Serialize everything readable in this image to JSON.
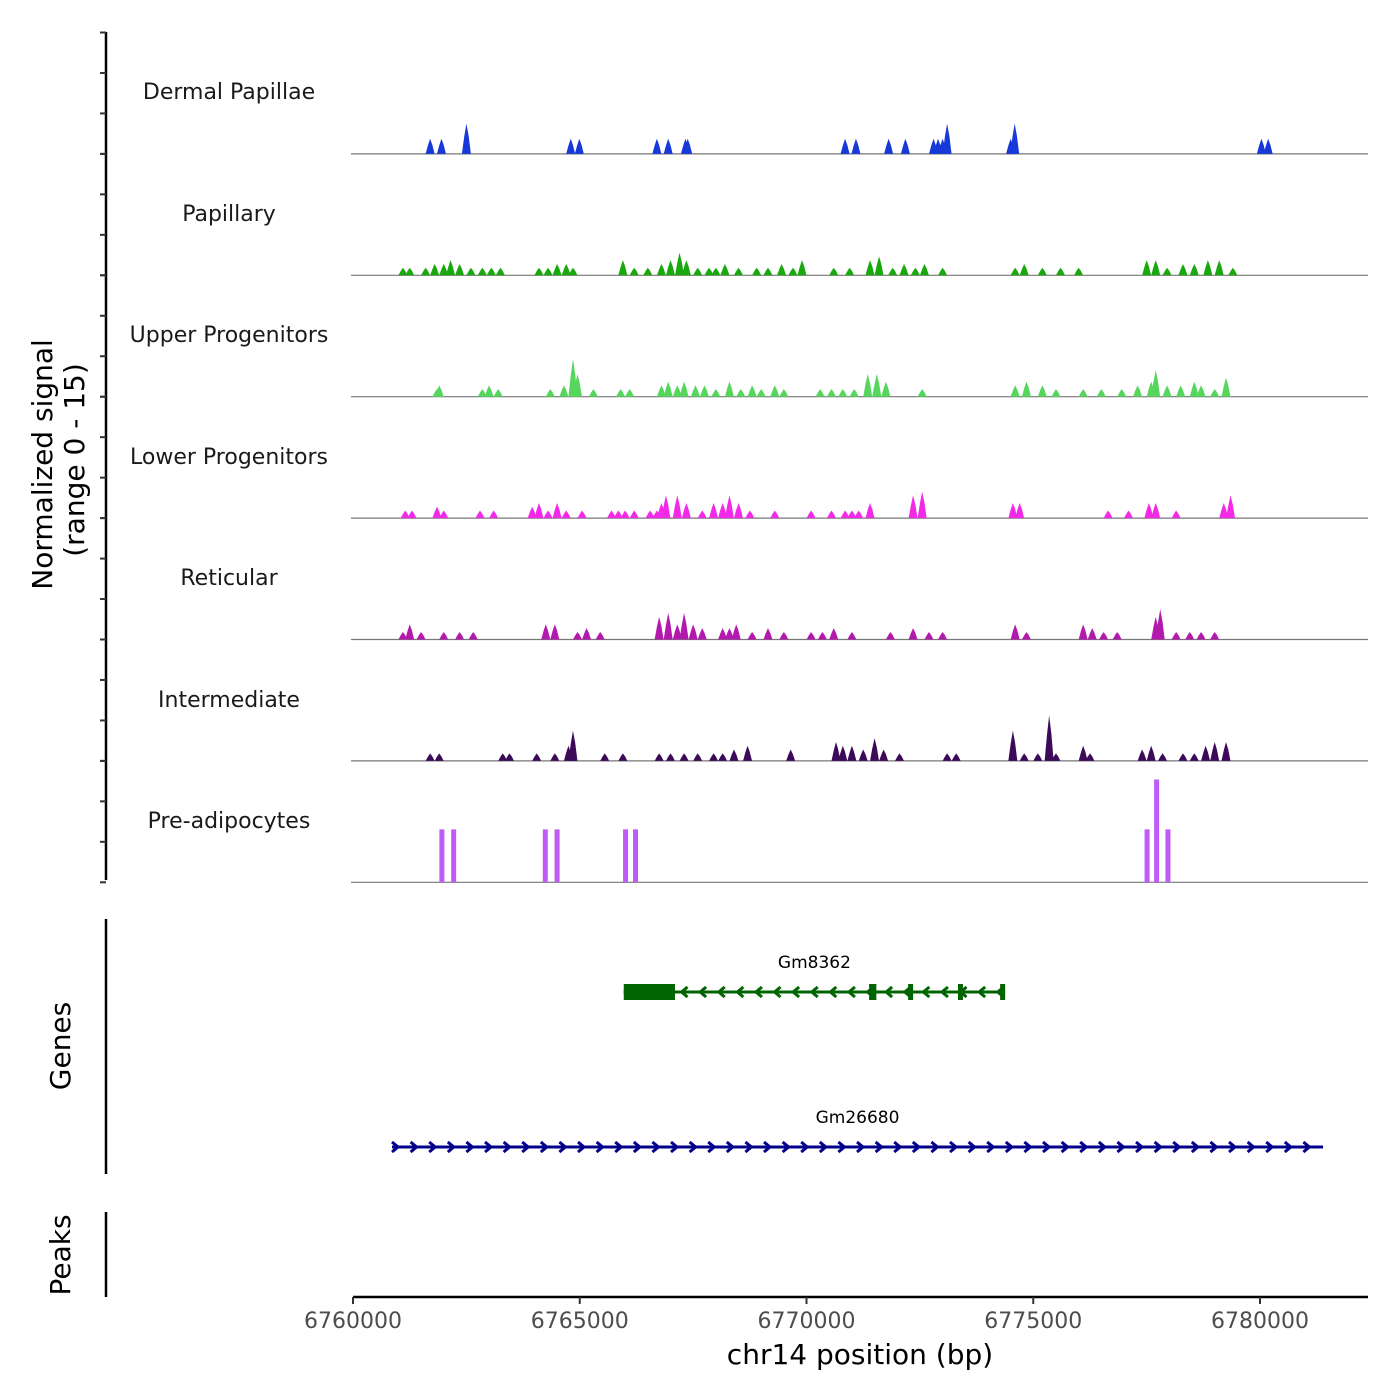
{
  "chart_data": {
    "type": "area",
    "title": "",
    "ylabel": "Normalized signal\n(range 0 - 15)",
    "ylabel_lines": [
      "Normalized signal",
      "(range 0 - 15)"
    ],
    "xlabel": "chr14 position (bp)",
    "xlim": [
      6760000,
      6782400
    ],
    "ylim": [
      0,
      15
    ],
    "x_ticks": [
      6760000,
      6765000,
      6770000,
      6775000,
      6780000
    ],
    "x_tick_labels": [
      "6760000",
      "6765000",
      "6770000",
      "6775000",
      "6780000"
    ],
    "grid": false,
    "tracks": [
      {
        "name": "Dermal Papillae",
        "color": "#1739d9",
        "peaks": [
          [
            6761700,
            2
          ],
          [
            6761950,
            2
          ],
          [
            6762500,
            4
          ],
          [
            6764800,
            2
          ],
          [
            6764990,
            2
          ],
          [
            6766700,
            2
          ],
          [
            6766950,
            2
          ],
          [
            6767330,
            2
          ],
          [
            6767380,
            2
          ],
          [
            6770850,
            2
          ],
          [
            6771090,
            2
          ],
          [
            6771810,
            2
          ],
          [
            6772180,
            2
          ],
          [
            6772800,
            2
          ],
          [
            6772900,
            2
          ],
          [
            6773000,
            2
          ],
          [
            6773100,
            4
          ],
          [
            6774500,
            2
          ],
          [
            6774590,
            4
          ],
          [
            6780030,
            2
          ],
          [
            6780180,
            2
          ]
        ]
      },
      {
        "name": "Papillary",
        "color": "#1aa80f",
        "peaks": [
          [
            6761100,
            1
          ],
          [
            6761250,
            1
          ],
          [
            6761600,
            1
          ],
          [
            6761800,
            1.5
          ],
          [
            6762000,
            1.5
          ],
          [
            6762150,
            2
          ],
          [
            6762350,
            1.5
          ],
          [
            6762600,
            1
          ],
          [
            6762850,
            1
          ],
          [
            6763050,
            1
          ],
          [
            6763250,
            1
          ],
          [
            6764100,
            1
          ],
          [
            6764300,
            1
          ],
          [
            6764500,
            1.5
          ],
          [
            6764700,
            1.5
          ],
          [
            6764850,
            1
          ],
          [
            6765950,
            2
          ],
          [
            6766200,
            1
          ],
          [
            6766500,
            1
          ],
          [
            6766800,
            1.5
          ],
          [
            6767000,
            2
          ],
          [
            6767200,
            3
          ],
          [
            6767350,
            2
          ],
          [
            6767600,
            1
          ],
          [
            6767850,
            1
          ],
          [
            6768000,
            1
          ],
          [
            6768200,
            1.5
          ],
          [
            6768500,
            1
          ],
          [
            6768900,
            1
          ],
          [
            6769150,
            1
          ],
          [
            6769450,
            1.5
          ],
          [
            6769700,
            1
          ],
          [
            6769900,
            2
          ],
          [
            6770600,
            1
          ],
          [
            6770950,
            1
          ],
          [
            6771400,
            2
          ],
          [
            6771600,
            2.5
          ],
          [
            6771900,
            1
          ],
          [
            6772150,
            1.5
          ],
          [
            6772400,
            1
          ],
          [
            6772600,
            1.5
          ],
          [
            6773000,
            1
          ],
          [
            6774600,
            1
          ],
          [
            6774800,
            1.5
          ],
          [
            6775200,
            1
          ],
          [
            6775600,
            1
          ],
          [
            6776000,
            1
          ],
          [
            6777500,
            2
          ],
          [
            6777700,
            2
          ],
          [
            6777950,
            1
          ],
          [
            6778300,
            1.5
          ],
          [
            6778550,
            1.5
          ],
          [
            6778850,
            2
          ],
          [
            6779100,
            2
          ],
          [
            6779400,
            1
          ]
        ]
      },
      {
        "name": "Upper Progenitors",
        "color": "#57d65e",
        "peaks": [
          [
            6761850,
            1
          ],
          [
            6761900,
            1.5
          ],
          [
            6762850,
            1
          ],
          [
            6763000,
            1.5
          ],
          [
            6763200,
            1
          ],
          [
            6764350,
            1
          ],
          [
            6764650,
            1.5
          ],
          [
            6764850,
            5
          ],
          [
            6764950,
            3
          ],
          [
            6765300,
            1
          ],
          [
            6765900,
            1
          ],
          [
            6766100,
            1
          ],
          [
            6766800,
            1.5
          ],
          [
            6766950,
            2
          ],
          [
            6767150,
            1.5
          ],
          [
            6767300,
            2
          ],
          [
            6767550,
            1.5
          ],
          [
            6767750,
            1.5
          ],
          [
            6768000,
            1
          ],
          [
            6768300,
            2
          ],
          [
            6768550,
            1
          ],
          [
            6768800,
            1.5
          ],
          [
            6769000,
            1
          ],
          [
            6769300,
            1.5
          ],
          [
            6769500,
            1
          ],
          [
            6770300,
            1
          ],
          [
            6770550,
            1
          ],
          [
            6770800,
            1
          ],
          [
            6771050,
            1
          ],
          [
            6771350,
            3
          ],
          [
            6771550,
            3
          ],
          [
            6771750,
            2
          ],
          [
            6772550,
            1
          ],
          [
            6774600,
            1.5
          ],
          [
            6774850,
            2
          ],
          [
            6775200,
            1.5
          ],
          [
            6775500,
            1
          ],
          [
            6776100,
            1
          ],
          [
            6776500,
            1
          ],
          [
            6776950,
            1
          ],
          [
            6777300,
            1.5
          ],
          [
            6777600,
            2
          ],
          [
            6777700,
            3.5
          ],
          [
            6777950,
            1.5
          ],
          [
            6778250,
            1.5
          ],
          [
            6778550,
            2
          ],
          [
            6778700,
            1.5
          ],
          [
            6779000,
            1
          ],
          [
            6779250,
            2.5
          ]
        ]
      },
      {
        "name": "Lower Progenitors",
        "color": "#f22ae8",
        "peaks": [
          [
            6761150,
            1
          ],
          [
            6761300,
            1
          ],
          [
            6761850,
            1.5
          ],
          [
            6762000,
            1
          ],
          [
            6762800,
            1
          ],
          [
            6763100,
            1
          ],
          [
            6763950,
            1.5
          ],
          [
            6764100,
            2
          ],
          [
            6764300,
            1
          ],
          [
            6764500,
            2
          ],
          [
            6764700,
            1
          ],
          [
            6765050,
            1
          ],
          [
            6765700,
            1
          ],
          [
            6765850,
            1
          ],
          [
            6766000,
            1
          ],
          [
            6766200,
            1
          ],
          [
            6766550,
            1
          ],
          [
            6766700,
            1
          ],
          [
            6766800,
            2
          ],
          [
            6766900,
            3
          ],
          [
            6767150,
            3
          ],
          [
            6767350,
            2
          ],
          [
            6767700,
            1
          ],
          [
            6767950,
            2
          ],
          [
            6768150,
            2
          ],
          [
            6768300,
            3
          ],
          [
            6768500,
            2
          ],
          [
            6768750,
            1
          ],
          [
            6769300,
            1
          ],
          [
            6770100,
            1
          ],
          [
            6770550,
            1
          ],
          [
            6770850,
            1
          ],
          [
            6771000,
            1
          ],
          [
            6771150,
            1
          ],
          [
            6771400,
            2
          ],
          [
            6772350,
            3
          ],
          [
            6772550,
            3.5
          ],
          [
            6774550,
            2
          ],
          [
            6774700,
            2
          ],
          [
            6776650,
            1
          ],
          [
            6777100,
            1
          ],
          [
            6777550,
            2
          ],
          [
            6777700,
            2
          ],
          [
            6778150,
            1
          ],
          [
            6779200,
            2
          ],
          [
            6779350,
            3
          ]
        ]
      },
      {
        "name": "Reticular",
        "color": "#b319ad",
        "peaks": [
          [
            6761100,
            1
          ],
          [
            6761250,
            2
          ],
          [
            6761500,
            1
          ],
          [
            6762000,
            1
          ],
          [
            6762350,
            1
          ],
          [
            6762650,
            1
          ],
          [
            6764250,
            2
          ],
          [
            6764450,
            2
          ],
          [
            6764950,
            1
          ],
          [
            6765150,
            1.5
          ],
          [
            6765450,
            1
          ],
          [
            6766750,
            3
          ],
          [
            6766950,
            3.5
          ],
          [
            6767150,
            2
          ],
          [
            6767300,
            3.5
          ],
          [
            6767500,
            2
          ],
          [
            6767700,
            1.5
          ],
          [
            6768150,
            1.5
          ],
          [
            6768300,
            1.5
          ],
          [
            6768450,
            2
          ],
          [
            6768800,
            1
          ],
          [
            6769150,
            1.5
          ],
          [
            6769500,
            1
          ],
          [
            6770100,
            1
          ],
          [
            6770350,
            1
          ],
          [
            6770600,
            1.5
          ],
          [
            6771000,
            1
          ],
          [
            6771850,
            1
          ],
          [
            6772350,
            1.5
          ],
          [
            6772700,
            1
          ],
          [
            6773000,
            1
          ],
          [
            6774600,
            2
          ],
          [
            6774850,
            1
          ],
          [
            6776100,
            2
          ],
          [
            6776300,
            1.5
          ],
          [
            6776550,
            1
          ],
          [
            6776850,
            1
          ],
          [
            6777700,
            3
          ],
          [
            6777800,
            4
          ],
          [
            6778150,
            1
          ],
          [
            6778450,
            1
          ],
          [
            6778700,
            1
          ],
          [
            6779000,
            1
          ]
        ]
      },
      {
        "name": "Intermediate",
        "color": "#3d0a59",
        "peaks": [
          [
            6761700,
            1
          ],
          [
            6761900,
            1
          ],
          [
            6763300,
            1
          ],
          [
            6763450,
            1
          ],
          [
            6764050,
            1
          ],
          [
            6764450,
            1
          ],
          [
            6764750,
            2
          ],
          [
            6764850,
            4
          ],
          [
            6765550,
            1
          ],
          [
            6765950,
            1
          ],
          [
            6766750,
            1
          ],
          [
            6767000,
            1
          ],
          [
            6767300,
            1
          ],
          [
            6767600,
            1
          ],
          [
            6767950,
            1
          ],
          [
            6768150,
            1
          ],
          [
            6768400,
            1.5
          ],
          [
            6768700,
            2
          ],
          [
            6769650,
            1.5
          ],
          [
            6770650,
            2.5
          ],
          [
            6770800,
            2
          ],
          [
            6771000,
            2
          ],
          [
            6771250,
            1.5
          ],
          [
            6771500,
            3
          ],
          [
            6771700,
            1.5
          ],
          [
            6772050,
            1
          ],
          [
            6773100,
            1
          ],
          [
            6773300,
            1
          ],
          [
            6774550,
            4
          ],
          [
            6774800,
            1
          ],
          [
            6775100,
            1
          ],
          [
            6775350,
            6
          ],
          [
            6775500,
            1
          ],
          [
            6776100,
            2
          ],
          [
            6776250,
            1
          ],
          [
            6777400,
            1.5
          ],
          [
            6777600,
            2
          ],
          [
            6777850,
            1
          ],
          [
            6778300,
            1
          ],
          [
            6778550,
            1
          ],
          [
            6778800,
            2
          ],
          [
            6779000,
            2.5
          ],
          [
            6779250,
            2.5
          ]
        ]
      },
      {
        "name": "Pre-adipocytes",
        "color": "#bf5bf7",
        "peaks": [
          [
            6761960,
            7
          ],
          [
            6762220,
            7
          ],
          [
            6764240,
            7
          ],
          [
            6764500,
            7
          ],
          [
            6766010,
            7
          ],
          [
            6766230,
            7
          ],
          [
            6777510,
            7
          ],
          [
            6777720,
            13.6
          ],
          [
            6777970,
            7
          ]
        ]
      }
    ],
    "genes_panel": {
      "label": "Genes",
      "genes": [
        {
          "name": "Gm8362",
          "strand": "-",
          "color": "#006400",
          "start": 6765970,
          "end": 6774380,
          "exons": [
            [
              6765970,
              6767100
            ],
            [
              6771380,
              6771540
            ],
            [
              6772240,
              6772330
            ],
            [
              6773340,
              6773430
            ],
            [
              6774270,
              6774380
            ]
          ],
          "row": 1
        },
        {
          "name": "Gm26680",
          "strand": "+",
          "color": "#00008b",
          "start": 6760860,
          "end": 6781390,
          "exons": [],
          "row": 2
        }
      ]
    },
    "peaks_panel": {
      "label": "Peaks",
      "peaks": []
    }
  }
}
